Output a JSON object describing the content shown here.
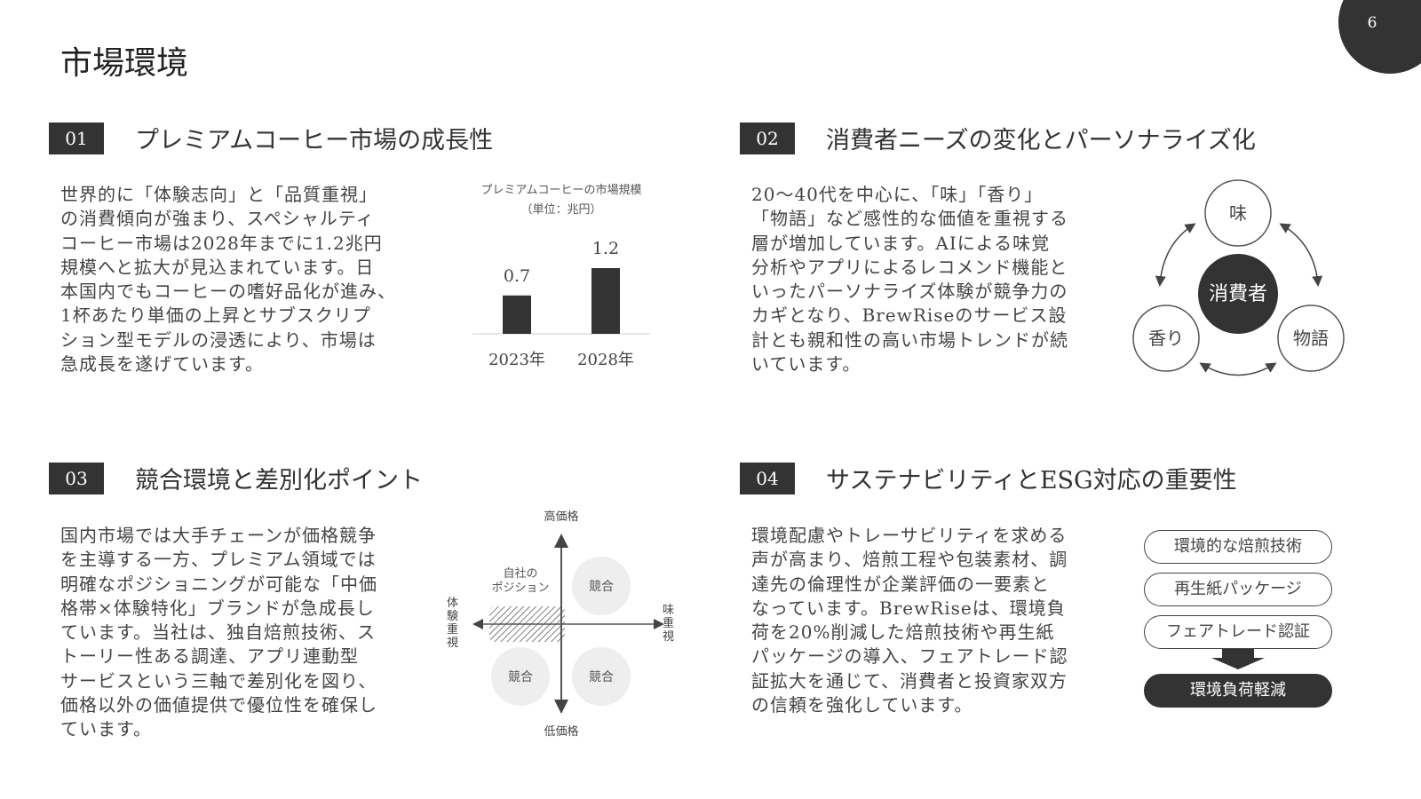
{
  "page_number": "6",
  "title": "市場環境",
  "sections": [
    {
      "num": "01",
      "heading": "プレミアムコーヒー市場の成長性",
      "body": [
        "世界的に「体験志向」と「品質重視」",
        "の消費傾向が強まり、スペシャルティ",
        "コーヒー市場は2028年までに1.2兆円",
        "規模へと拡大が見込まれています。日",
        "本国内でもコーヒーの嗜好品化が進み、",
        "1杯あたり単価の上昇とサブスクリプ",
        "ション型モデルの浸透により、市場は",
        "急成長を遂げています。"
      ]
    },
    {
      "num": "02",
      "heading": "消費者ニーズの変化とパーソナライズ化",
      "body": [
        "20〜40代を中心に、「味」「香り」",
        "「物語」など感性的な価値を重視する",
        "層が増加しています。AIによる味覚",
        "分析やアプリによるレコメンド機能と",
        "いったパーソナライズ体験が競争力の",
        "カギとなり、BrewRiseのサービス設",
        "計とも親和性の高い市場トレンドが続",
        "いています。"
      ]
    },
    {
      "num": "03",
      "heading": "競合環境と差別化ポイント",
      "body": [
        "国内市場では大手チェーンが価格競争",
        "を主導する一方、プレミアム領域では",
        "明確なポジショニングが可能な「中価",
        "格帯×体験特化」ブランドが急成長し",
        "ています。当社は、独自焙煎技術、ス",
        "トーリー性ある調達、アプリ連動型",
        "サービスという三軸で差別化を図り、",
        "価格以外の価値提供で優位性を確保し",
        "ています。"
      ]
    },
    {
      "num": "04",
      "heading": "サステナビリティとESG対応の重要性",
      "body": [
        "環境配慮やトレーサビリティを求める",
        "声が高まり、焙煎工程や包装素材、調",
        "達先の倫理性が企業評価の一要素と",
        "なっています。BrewRiseは、環境負",
        "荷を20%削減した焙煎技術や再生紙",
        "パッケージの導入、フェアトレード認",
        "証拡大を通じて、消費者と投資家双方",
        "の信頼を強化しています。"
      ]
    }
  ],
  "chart_data": {
    "type": "bar",
    "title": "プレミアムコーヒーの市場規模",
    "subtitle": "（単位：兆円）",
    "categories": [
      "2023年",
      "2028年"
    ],
    "values": [
      0.7,
      1.2
    ],
    "data_labels": [
      "0.7",
      "1.2"
    ],
    "ylim": [
      0,
      1.2
    ],
    "grid": false,
    "bar_color": "#333333"
  },
  "consumer_diagram": {
    "center": "消費者",
    "nodes": [
      "味",
      "香り",
      "物語"
    ]
  },
  "positioning_map": {
    "top": "高価格",
    "bottom": "低価格",
    "left": "体験重視",
    "right": "味重視",
    "own_label": [
      "自社の",
      "ポジション"
    ],
    "competitors": [
      "競合",
      "競合",
      "競合"
    ]
  },
  "esg_flow": {
    "items": [
      "環境的な焙煎技術",
      "再生紙パッケージ",
      "フェアトレード認証"
    ],
    "result": "環境負荷軽減"
  }
}
